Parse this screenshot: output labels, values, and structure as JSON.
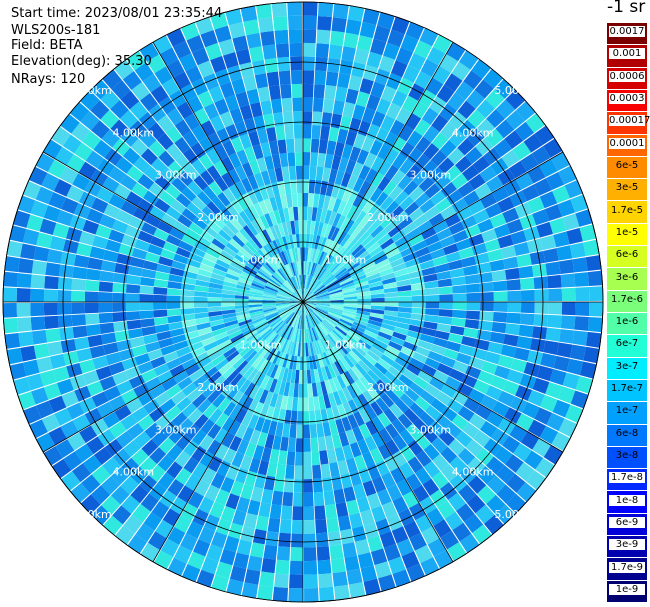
{
  "header": {
    "start_time": "Start time: 2023/08/01 23:35:44",
    "device": "WLS200s-181",
    "field": "Field: BETA",
    "elevation": "Elevation(deg): 35.30",
    "nrays": "NRays: 120"
  },
  "colorbar": {
    "unit": "-1 sr",
    "labels": [
      "0.0017",
      "0.001",
      "0.0006",
      "0.0003",
      "0.00017",
      "0.0001",
      "6e-5",
      "3e-5",
      "1.7e-5",
      "1e-5",
      "6e-6",
      "3e-6",
      "1.7e-6",
      "1e-6",
      "6e-7",
      "3e-7",
      "1.7e-7",
      "1e-7",
      "6e-8",
      "3e-8",
      "1.7e-8",
      "1e-8",
      "6e-9",
      "3e-9",
      "1.7e-9",
      "1e-9"
    ],
    "colors": [
      "#7a0000",
      "#b00000",
      "#d50000",
      "#f80000",
      "#ff3500",
      "#ff6600",
      "#ff8c00",
      "#ffb000",
      "#ffd400",
      "#ffff00",
      "#d6ff22",
      "#a7ff50",
      "#7bff7b",
      "#50ffa7",
      "#22ffd6",
      "#00ecff",
      "#00c4ff",
      "#00a0ff",
      "#0078ff",
      "#0050ff",
      "#0028ff",
      "#0000ff",
      "#0000d8",
      "#0000b0",
      "#000090",
      "#000070"
    ]
  },
  "chart_data": {
    "type": "heatmap",
    "projection": "polar (PPI)",
    "field": "BETA",
    "elevation_deg": 35.3,
    "n_rays": 120,
    "ring_labels": [
      "1.00km",
      "2.00km",
      "3.00km",
      "4.00km",
      "5.00km"
    ],
    "ring_radii_km": [
      1,
      2,
      3,
      4,
      5
    ],
    "spokes_deg": [
      0,
      30,
      60,
      90,
      120,
      150,
      180,
      210,
      240,
      270,
      300,
      330
    ],
    "value_scale": "log",
    "value_range": [
      1e-09,
      0.0017
    ],
    "typical_value_near_center": "1.7e-7",
    "typical_value_outer": "3e-8",
    "grid": true
  }
}
